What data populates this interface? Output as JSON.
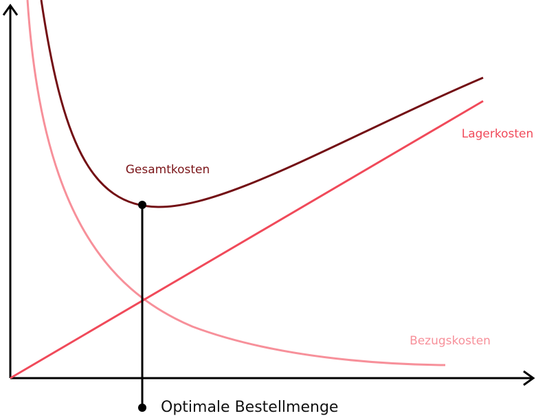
{
  "labels": {
    "total_cost": "Gesamtkosten",
    "storage_cost": "Lagerkosten",
    "procurement_cost": "Bezugskosten",
    "optimum": "Optimale Bestellmenge"
  }
}
